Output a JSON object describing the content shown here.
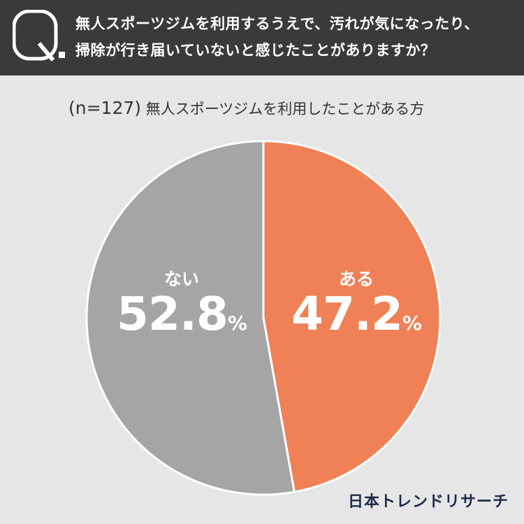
{
  "header": {
    "q_letter": "Q",
    "question_line1": "無人スポーツジムを利用するうえで、汚れが気になったり、",
    "question_line2": "掃除が行き届いていないと感じたことがありますか？"
  },
  "sample": {
    "n_text": "(n=127)",
    "description": "無人スポーツジムを利用したことがある方"
  },
  "chart_data": {
    "type": "pie",
    "categories": [
      "ある",
      "ない"
    ],
    "values": [
      47.2,
      52.8
    ],
    "unit": "%",
    "colors": [
      "#f08157",
      "#a5a5a5"
    ],
    "start_direction": "top, clockwise"
  },
  "labels": {
    "yes_name": "ある",
    "yes_pct": "47.2",
    "no_name": "ない",
    "no_pct": "52.8",
    "unit": "%"
  },
  "logo": "日本トレンドリサーチ"
}
